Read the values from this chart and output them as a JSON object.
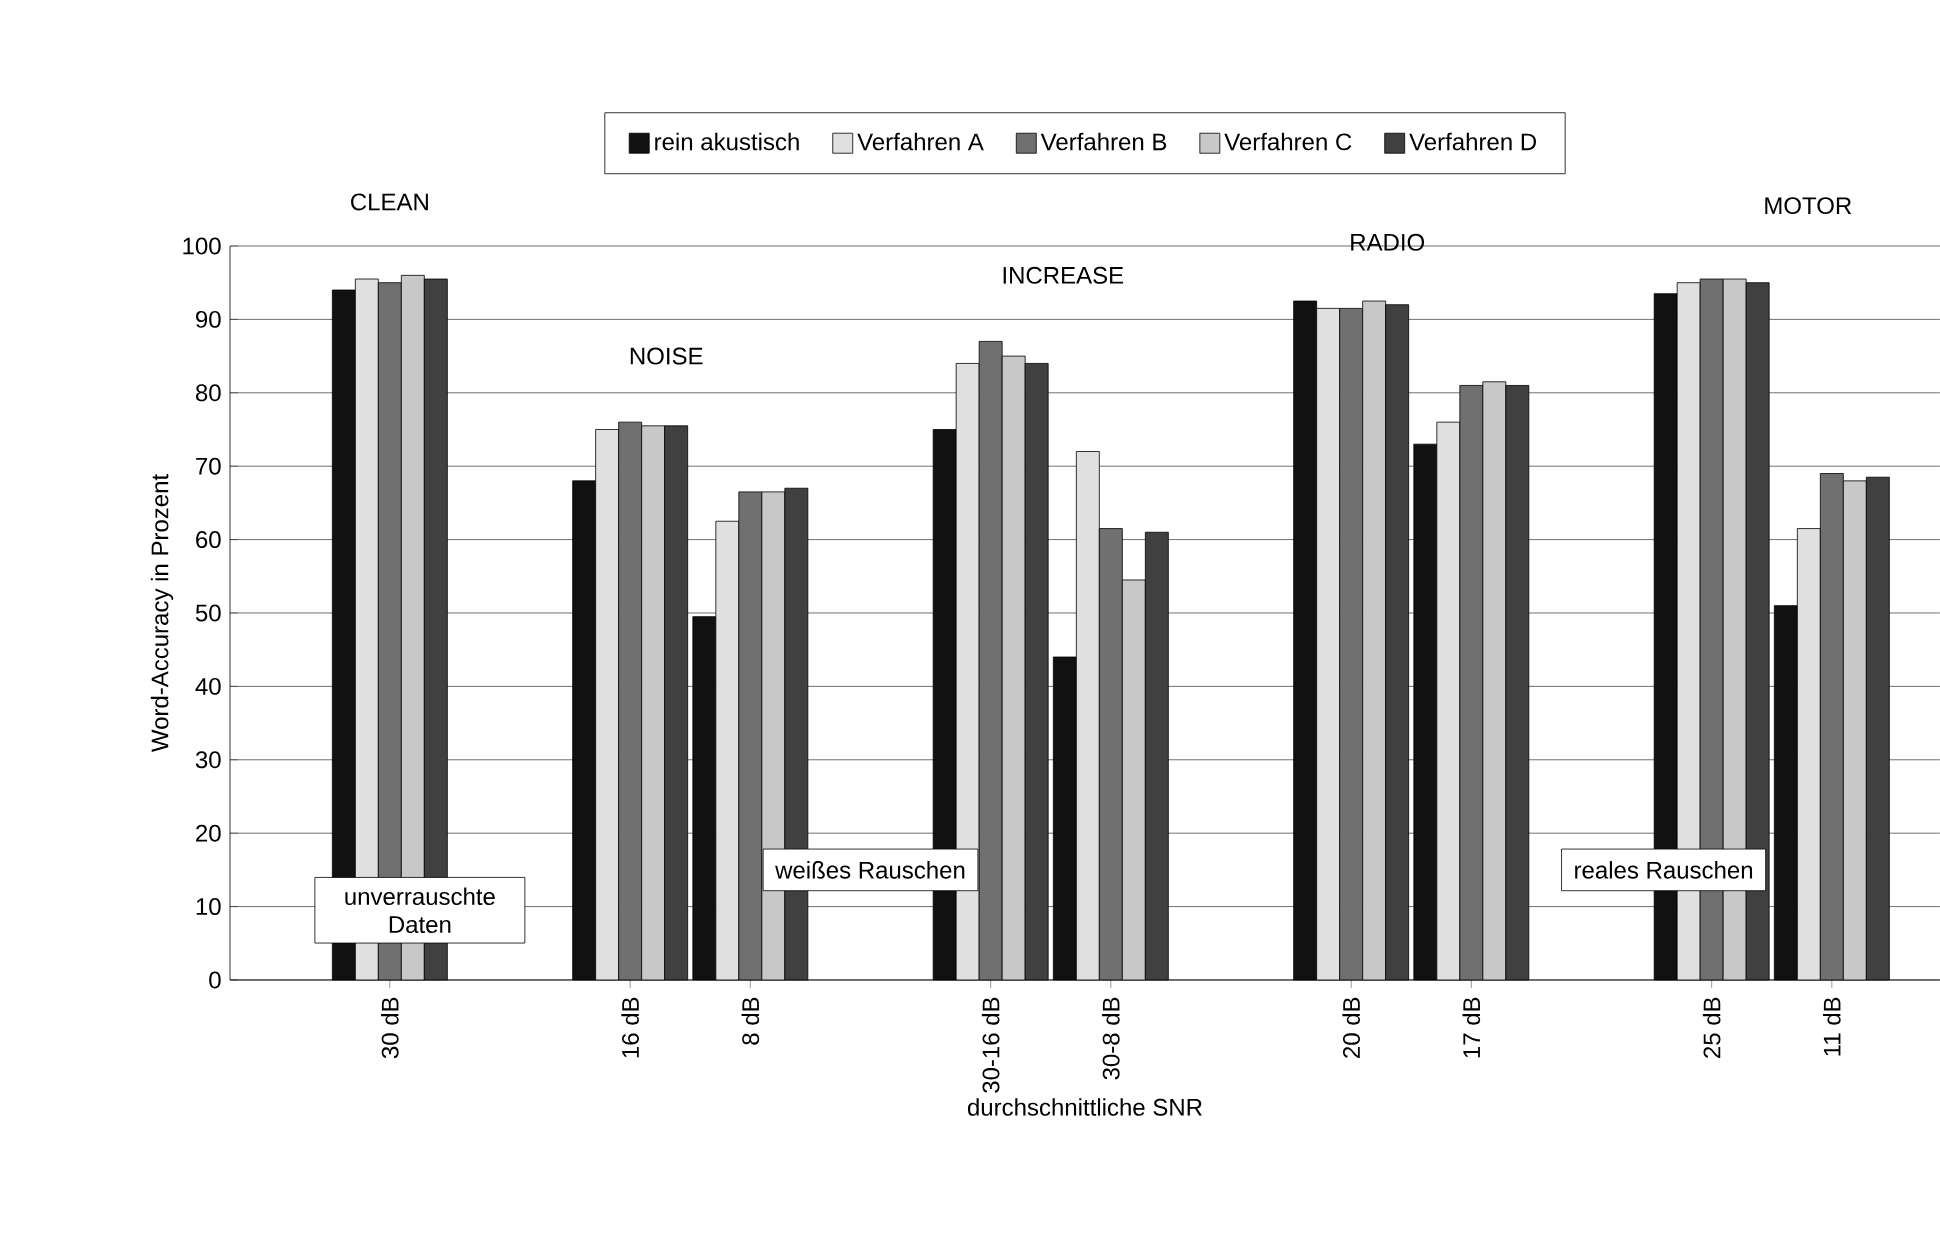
{
  "chart_data": {
    "type": "bar",
    "xlabel": "durchschnittliche SNR",
    "ylabel": "Word-Accuracy in Prozent",
    "categories": [
      "30 dB",
      null,
      "16 dB",
      "8 dB",
      null,
      "30-16 dB",
      "30-8 dB",
      null,
      "20 dB",
      "17 dB",
      null,
      "25 dB",
      "11 dB"
    ],
    "series": [
      {
        "name": "rein akustisch",
        "color": "#111111",
        "values": [
          94,
          null,
          68,
          49.5,
          null,
          75,
          44,
          null,
          92.5,
          73,
          null,
          93.5,
          51
        ]
      },
      {
        "name": "Verfahren A",
        "color": "#e0e0e0",
        "values": [
          95.5,
          null,
          75,
          62.5,
          null,
          84,
          72,
          null,
          91.5,
          76,
          null,
          95,
          61.5
        ]
      },
      {
        "name": "Verfahren B",
        "color": "#707070",
        "values": [
          95,
          null,
          76,
          66.5,
          null,
          87,
          61.5,
          null,
          91.5,
          81,
          null,
          95.5,
          69
        ]
      },
      {
        "name": "Verfahren C",
        "color": "#c8c8c8",
        "values": [
          96,
          null,
          75.5,
          66.5,
          null,
          85,
          54.5,
          null,
          92.5,
          81.5,
          null,
          95.5,
          68
        ]
      },
      {
        "name": "Verfahren D",
        "color": "#404040",
        "values": [
          95.5,
          null,
          75.5,
          67,
          null,
          84,
          61,
          null,
          92,
          81,
          null,
          95,
          68.5
        ]
      }
    ],
    "ylim": [
      0,
      100
    ],
    "yticks": [
      0,
      10,
      20,
      30,
      40,
      50,
      60,
      70,
      80,
      90,
      100
    ],
    "grid": "y",
    "legend": "top",
    "annotations": [
      "CLEAN",
      "NOISE",
      "INCREASE",
      "RADIO",
      "MOTOR",
      "unverrauschte Daten",
      "weißes Rauschen",
      "reales Rauschen"
    ]
  }
}
